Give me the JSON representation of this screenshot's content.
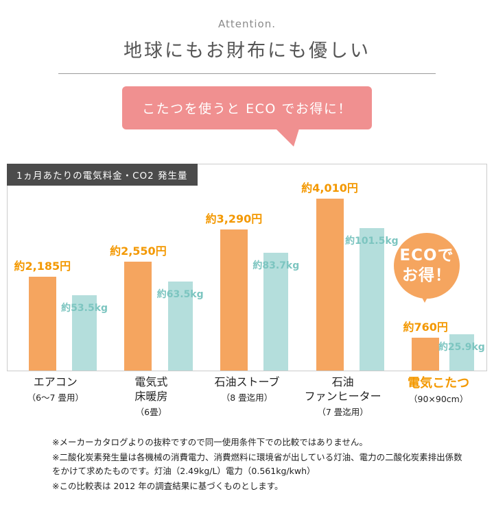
{
  "header": {
    "attention": "Attention.",
    "title": "地球にもお財布にも優しい"
  },
  "bubble": {
    "text": "こたつを使うと ECO でお得に！"
  },
  "panel": {
    "title": "1ヵ月あたりの電気料金・CO2 発生量"
  },
  "badge": {
    "line1": "ECOで",
    "line2": "お得！"
  },
  "chart_data": {
    "type": "bar",
    "title": "1ヵ月あたりの電気料金・CO2 発生量",
    "categories": [
      "エアコン（6～7 畳用）",
      "電気式床暖房（6畳）",
      "石油ストーブ（8 畳迄用）",
      "石油ファンヒーター（7 畳迄用）",
      "電気こたつ（90×90cm）"
    ],
    "series": [
      {
        "name": "電気料金（円/月）",
        "values": [
          2185,
          2550,
          3290,
          4010,
          760
        ],
        "labels": [
          "約2,185円",
          "約2,550円",
          "約3,290円",
          "約4,010円",
          "約760円"
        ],
        "color": "#f5a55f"
      },
      {
        "name": "CO2発生量（kg/月）",
        "values": [
          53.5,
          63.5,
          83.7,
          101.5,
          25.9
        ],
        "labels": [
          "約53.5kg",
          "約63.5kg",
          "約83.7kg",
          "約101.5kg",
          "約25.9kg"
        ],
        "color": "#b4dedc"
      }
    ],
    "legend": "none",
    "grid": false,
    "annotation": "ECOでお得！"
  },
  "categories_display": [
    {
      "name_lines": [
        "エアコン",
        ""
      ],
      "size": "（6～7 畳用）"
    },
    {
      "name_lines": [
        "電気式",
        "床暖房"
      ],
      "size": "（6畳）"
    },
    {
      "name_lines": [
        "石油ストーブ",
        ""
      ],
      "size": "（8 畳迄用）"
    },
    {
      "name_lines": [
        "石油",
        "ファンヒーター"
      ],
      "size": "（7 畳迄用）"
    },
    {
      "name_lines": [
        "電気こたつ",
        ""
      ],
      "size": "（90×90cm）"
    }
  ],
  "footnotes": [
    "※メーカーカタログよりの抜粋ですので同一使用条件下での比較ではありません。",
    "※二酸化炭素発生量は各機械の消費電力、消費燃料に環境省が出している灯油、電力の二酸化炭素排出係数をかけて求めたものです。灯油（2.49kg/L）電力（0.561kg/kwh）",
    "※この比較表は 2012 年の調査結果に基づくものとします。"
  ],
  "colors": {
    "bar_orange": "#f5a55f",
    "bar_teal": "#b4dedc",
    "price_text_orange": "#f39800",
    "kg_text_teal": "#7cc5c0",
    "bubble_pink": "#f09090",
    "panel_header_gray": "#4b4b4b"
  }
}
